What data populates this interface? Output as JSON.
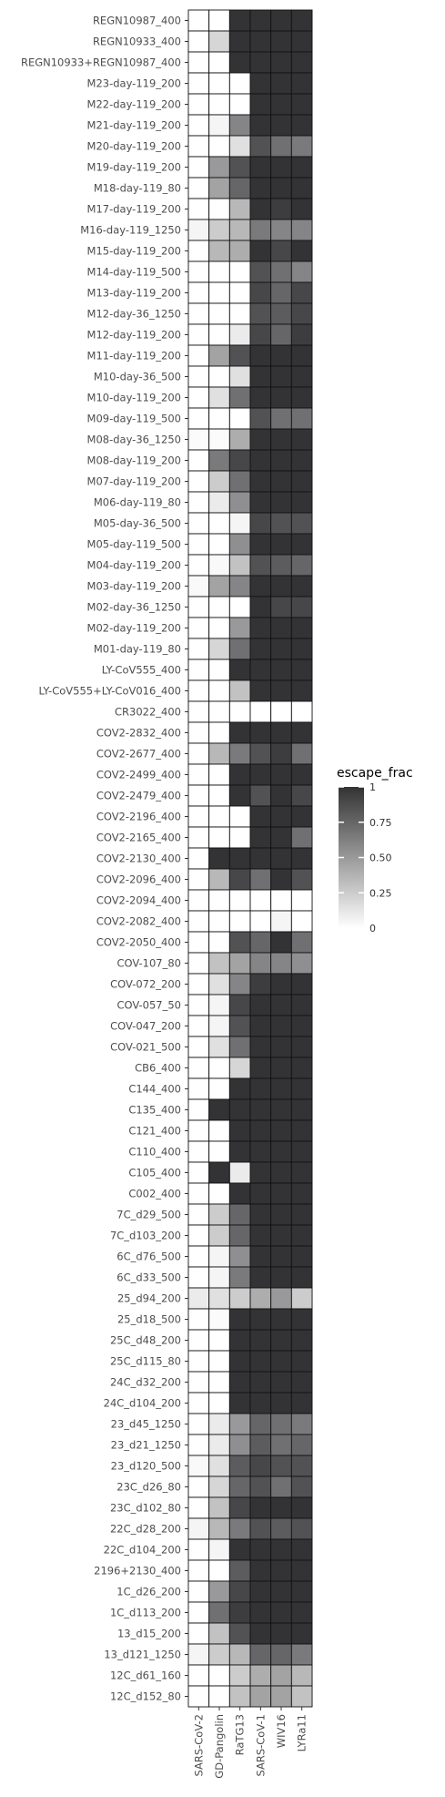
{
  "chart_data": {
    "type": "heatmap",
    "columns": [
      "SARS-CoV-2",
      "GD-Pangolin",
      "RaTG13",
      "SARS-CoV-1",
      "WIV16",
      "LYRa11"
    ],
    "rows": [
      {
        "label": "REGN10987_400",
        "values": [
          0,
          0,
          1,
          1,
          1,
          1
        ]
      },
      {
        "label": "REGN10933_400",
        "values": [
          0,
          0.2,
          1,
          1,
          1,
          1
        ]
      },
      {
        "label": "REGN10933+REGN10987_400",
        "values": [
          0,
          0,
          1,
          1,
          1,
          1
        ]
      },
      {
        "label": "M23-day-119_200",
        "values": [
          0,
          0,
          0,
          1,
          1,
          1
        ]
      },
      {
        "label": "M22-day-119_200",
        "values": [
          0,
          0,
          0,
          1,
          1,
          1
        ]
      },
      {
        "label": "M21-day-119_200",
        "values": [
          0,
          0.05,
          0.6,
          1,
          1,
          1
        ]
      },
      {
        "label": "M20-day-119_200",
        "values": [
          0,
          0,
          0.15,
          0.85,
          0.7,
          0.65
        ]
      },
      {
        "label": "M19-day-119_200",
        "values": [
          0,
          0.5,
          0.85,
          1,
          1,
          1
        ]
      },
      {
        "label": "M18-day-119_80",
        "values": [
          0,
          0.45,
          0.75,
          1,
          1,
          1
        ]
      },
      {
        "label": "M17-day-119_200",
        "values": [
          0,
          0,
          0.35,
          1,
          0.95,
          1
        ]
      },
      {
        "label": "M16-day-119_1250",
        "values": [
          0.05,
          0.25,
          0.35,
          0.65,
          0.6,
          0.6
        ]
      },
      {
        "label": "M15-day-119_200",
        "values": [
          0,
          0.35,
          0.4,
          1,
          0.9,
          1
        ]
      },
      {
        "label": "M14-day-119_500",
        "values": [
          0,
          0,
          0,
          0.85,
          0.7,
          0.6
        ]
      },
      {
        "label": "M13-day-119_200",
        "values": [
          0,
          0,
          0,
          0.9,
          0.75,
          0.9
        ]
      },
      {
        "label": "M12-day-36_1250",
        "values": [
          0,
          0,
          0,
          0.85,
          0.8,
          0.9
        ]
      },
      {
        "label": "M12-day-119_200",
        "values": [
          0,
          0,
          0.1,
          0.9,
          0.75,
          0.95
        ]
      },
      {
        "label": "M11-day-119_200",
        "values": [
          0,
          0.45,
          0.85,
          1,
          1,
          1
        ]
      },
      {
        "label": "M10-day-36_500",
        "values": [
          0,
          0,
          0.15,
          1,
          1,
          1
        ]
      },
      {
        "label": "M10-day-119_200",
        "values": [
          0,
          0.15,
          0.7,
          1,
          1,
          1
        ]
      },
      {
        "label": "M09-day-119_500",
        "values": [
          0,
          0,
          0,
          0.85,
          0.7,
          0.7
        ]
      },
      {
        "label": "M08-day-36_1250",
        "values": [
          0.02,
          0.02,
          0.4,
          1,
          1,
          1
        ]
      },
      {
        "label": "M08-day-119_200",
        "values": [
          0,
          0.65,
          0.9,
          1,
          1,
          1
        ]
      },
      {
        "label": "M07-day-119_200",
        "values": [
          0,
          0.25,
          0.7,
          1,
          1,
          1
        ]
      },
      {
        "label": "M06-day-119_80",
        "values": [
          0,
          0.1,
          0.55,
          1,
          1,
          1
        ]
      },
      {
        "label": "M05-day-36_500",
        "values": [
          0,
          0,
          0.05,
          0.9,
          0.85,
          0.85
        ]
      },
      {
        "label": "M05-day-119_500",
        "values": [
          0,
          0,
          0.55,
          1,
          1,
          1
        ]
      },
      {
        "label": "M04-day-119_200",
        "values": [
          0,
          0.03,
          0.3,
          0.85,
          0.8,
          0.75
        ]
      },
      {
        "label": "M03-day-119_200",
        "values": [
          0.03,
          0.45,
          0.6,
          1,
          1,
          1
        ]
      },
      {
        "label": "M02-day-36_1250",
        "values": [
          0,
          0,
          0,
          1,
          0.9,
          0.9
        ]
      },
      {
        "label": "M02-day-119_200",
        "values": [
          0,
          0,
          0.5,
          1,
          1,
          1
        ]
      },
      {
        "label": "M01-day-119_80",
        "values": [
          0,
          0.2,
          0.7,
          1,
          1,
          1
        ]
      },
      {
        "label": "LY-CoV555_400",
        "values": [
          0,
          0,
          1,
          1,
          1,
          1
        ]
      },
      {
        "label": "LY-CoV555+LY-CoV016_400",
        "values": [
          0,
          0,
          0.3,
          1,
          1,
          1
        ]
      },
      {
        "label": "CR3022_400",
        "values": [
          0,
          0,
          0,
          0,
          0,
          0
        ]
      },
      {
        "label": "COV2-2832_400",
        "values": [
          0,
          0,
          1,
          1,
          1,
          1
        ]
      },
      {
        "label": "COV2-2677_400",
        "values": [
          0,
          0.35,
          0.65,
          0.85,
          0.95,
          0.7
        ]
      },
      {
        "label": "COV2-2499_400",
        "values": [
          0,
          0,
          1,
          1,
          1,
          1
        ]
      },
      {
        "label": "COV2-2479_400",
        "values": [
          0,
          0,
          1,
          0.85,
          1,
          0.9
        ]
      },
      {
        "label": "COV2-2196_400",
        "values": [
          0,
          0,
          0,
          1,
          1,
          1
        ]
      },
      {
        "label": "COV2-2165_400",
        "values": [
          0,
          0,
          0,
          1,
          1,
          0.7
        ]
      },
      {
        "label": "COV2-2130_400",
        "values": [
          0,
          1,
          1,
          1,
          1,
          1
        ]
      },
      {
        "label": "COV2-2096_400",
        "values": [
          0,
          0.35,
          0.9,
          0.7,
          1,
          0.85
        ]
      },
      {
        "label": "COV2-2094_400",
        "values": [
          0,
          0,
          0,
          0,
          0,
          0
        ]
      },
      {
        "label": "COV2-2082_400",
        "values": [
          0,
          0,
          0,
          0,
          0.05,
          0
        ]
      },
      {
        "label": "COV2-2050_400",
        "values": [
          0,
          0,
          0.85,
          0.75,
          1,
          0.7
        ]
      },
      {
        "label": "COV-107_80",
        "values": [
          0,
          0.3,
          0.45,
          0.6,
          0.6,
          0.55
        ]
      },
      {
        "label": "COV-072_200",
        "values": [
          0,
          0.15,
          0.6,
          0.95,
          1,
          1
        ]
      },
      {
        "label": "COV-057_50",
        "values": [
          0,
          0.05,
          0.9,
          1,
          1,
          1
        ]
      },
      {
        "label": "COV-047_200",
        "values": [
          0,
          0.05,
          0.85,
          1,
          1,
          1
        ]
      },
      {
        "label": "COV-021_500",
        "values": [
          0,
          0.15,
          0.7,
          1,
          1,
          1
        ]
      },
      {
        "label": "CB6_400",
        "values": [
          0,
          0,
          0.2,
          1,
          1,
          1
        ]
      },
      {
        "label": "C144_400",
        "values": [
          0,
          0,
          1,
          1,
          1,
          1
        ]
      },
      {
        "label": "C135_400",
        "values": [
          0,
          1,
          1,
          1,
          1,
          1
        ]
      },
      {
        "label": "C121_400",
        "values": [
          0,
          0,
          1,
          1,
          1,
          1
        ]
      },
      {
        "label": "C110_400",
        "values": [
          0,
          0,
          1,
          1,
          1,
          1
        ]
      },
      {
        "label": "C105_400",
        "values": [
          0,
          1,
          0.1,
          1,
          1,
          1
        ]
      },
      {
        "label": "C002_400",
        "values": [
          0,
          0,
          1,
          1,
          1,
          1
        ]
      },
      {
        "label": "7C_d29_500",
        "values": [
          0,
          0.25,
          0.75,
          1,
          1,
          1
        ]
      },
      {
        "label": "7C_d103_200",
        "values": [
          0,
          0.25,
          0.75,
          1,
          1,
          1
        ]
      },
      {
        "label": "6C_d76_500",
        "values": [
          0,
          0.05,
          0.55,
          1,
          1,
          1
        ]
      },
      {
        "label": "6C_d33_500",
        "values": [
          0,
          0.05,
          0.65,
          1,
          1,
          1
        ]
      },
      {
        "label": "25_d94_200",
        "values": [
          0.1,
          0.15,
          0.25,
          0.4,
          0.5,
          0.25
        ]
      },
      {
        "label": "25_d18_500",
        "values": [
          0,
          0.02,
          1,
          1,
          1,
          1
        ]
      },
      {
        "label": "25C_d48_200",
        "values": [
          0,
          0,
          1,
          1,
          1,
          1
        ]
      },
      {
        "label": "25C_d115_80",
        "values": [
          0,
          0,
          1,
          1,
          1,
          1
        ]
      },
      {
        "label": "24C_d32_200",
        "values": [
          0,
          0,
          1,
          1,
          1,
          1
        ]
      },
      {
        "label": "24C_d104_200",
        "values": [
          0,
          0,
          1,
          1,
          1,
          1
        ]
      },
      {
        "label": "23_d45_1250",
        "values": [
          0,
          0.1,
          0.5,
          0.75,
          0.7,
          0.65
        ]
      },
      {
        "label": "23_d21_1250",
        "values": [
          0,
          0.1,
          0.55,
          0.8,
          0.7,
          0.75
        ]
      },
      {
        "label": "23_d120_500",
        "values": [
          0.03,
          0.15,
          0.8,
          0.9,
          0.85,
          0.85
        ]
      },
      {
        "label": "23C_d26_80",
        "values": [
          0,
          0.2,
          0.75,
          0.85,
          0.7,
          0.85
        ]
      },
      {
        "label": "23C_d102_80",
        "values": [
          0,
          0.3,
          0.9,
          1,
          1,
          1
        ]
      },
      {
        "label": "22C_d28_200",
        "values": [
          0.05,
          0.35,
          0.65,
          0.85,
          0.8,
          0.85
        ]
      },
      {
        "label": "22C_d104_200",
        "values": [
          0,
          0.05,
          1,
          1,
          1,
          1
        ]
      },
      {
        "label": "2196+2130_400",
        "values": [
          0,
          0,
          0.8,
          1,
          1,
          1
        ]
      },
      {
        "label": "1C_d26_200",
        "values": [
          0,
          0.5,
          0.9,
          1,
          1,
          1
        ]
      },
      {
        "label": "1C_d113_200",
        "values": [
          0,
          0.7,
          0.95,
          1,
          1,
          1
        ]
      },
      {
        "label": "13_d15_200",
        "values": [
          0,
          0.3,
          0.85,
          1,
          1,
          1
        ]
      },
      {
        "label": "13_d121_1250",
        "values": [
          0.05,
          0.25,
          0.35,
          0.75,
          0.75,
          0.65
        ]
      },
      {
        "label": "12C_d61_160",
        "values": [
          0,
          0,
          0.25,
          0.4,
          0.45,
          0.35
        ]
      },
      {
        "label": "12C_d152_80",
        "values": [
          0,
          0,
          0.3,
          0.45,
          0.45,
          0.3
        ]
      }
    ],
    "legend": {
      "title": "escape_frac",
      "ticks": [
        "1",
        "0.75",
        "0.50",
        "0.25",
        "0"
      ],
      "tick_values": [
        1,
        0.75,
        0.5,
        0.25,
        0
      ],
      "range": [
        0,
        1
      ],
      "color_low": "#ffffff",
      "color_high": "#333333",
      "placement": "right"
    },
    "grid": false
  }
}
